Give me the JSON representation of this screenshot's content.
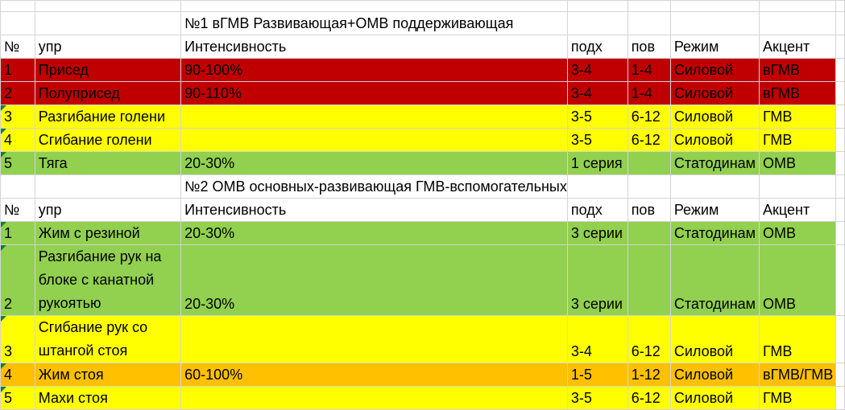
{
  "colors": {
    "red": "#c00000",
    "yellow": "#ffff00",
    "green": "#92d050",
    "orange": "#ffc000",
    "white": "#ffffff"
  },
  "block1": {
    "title": "№1 вГМВ Развивающая+ОМВ поддерживающая",
    "header": [
      "№",
      "упр",
      "Интенсивность",
      "подх",
      "пов",
      "Режим",
      "Акцент"
    ],
    "rows": [
      {
        "n": "1",
        "name": "Присед",
        "intensity": "90-100%",
        "sets": "3-4",
        "reps": "1-4",
        "mode": "Силовой",
        "accent": "вГМВ",
        "color": "red"
      },
      {
        "n": "2",
        "name": "Полуприсед",
        "intensity": "90-110%",
        "sets": "3-4",
        "reps": "1-4",
        "mode": "Силовой",
        "accent": "вГМВ",
        "color": "red"
      },
      {
        "n": "3",
        "name": "Разгибание голени",
        "intensity": "",
        "sets": "3-5",
        "reps": "6-12",
        "mode": "Силовой",
        "accent": "ГМВ",
        "color": "yellow"
      },
      {
        "n": "4",
        "name": "Сгибание голени",
        "intensity": "",
        "sets": "3-5",
        "reps": "6-12",
        "mode": "Силовой",
        "accent": "ГМВ",
        "color": "yellow"
      },
      {
        "n": "5",
        "name": "Тяга",
        "intensity": "20-30%",
        "sets": "1 серия",
        "reps": "",
        "mode": "Статодинам",
        "accent": "ОМВ",
        "color": "green"
      }
    ]
  },
  "block2": {
    "title": "№2 ОМВ основных-развивающая ГМВ-вспомогательных",
    "header": [
      "№",
      "упр",
      "Интенсивность",
      "подх",
      "пов",
      "Режим",
      "Акцент"
    ],
    "rows": [
      {
        "n": "1",
        "name": "Жим с резиной",
        "intensity": "20-30%",
        "sets": "3 серии",
        "reps": "",
        "mode": "Статодинам",
        "accent": "ОМВ",
        "color": "green"
      },
      {
        "n": "2",
        "name": "Разгибание рук на блоке с канатной рукоятью",
        "intensity": "20-30%",
        "sets": "3 серии",
        "reps": "",
        "mode": "Статодинам",
        "accent": "ОМВ",
        "color": "green"
      },
      {
        "n": "3",
        "name": "Сгибание рук со штангой стоя",
        "intensity": "",
        "sets": "3-4",
        "reps": "6-12",
        "mode": "Силовой",
        "accent": "ГМВ",
        "color": "yellow"
      },
      {
        "n": "4",
        "name": "Жим стоя",
        "intensity": "60-100%",
        "sets": "1-5",
        "reps": "1-12",
        "mode": "Силовой",
        "accent": "вГМВ/ГМВ",
        "color": "orange"
      },
      {
        "n": "5",
        "name": "Махи стоя",
        "intensity": "",
        "sets": "3-5",
        "reps": "6-12",
        "mode": "Силовой",
        "accent": "ГМВ",
        "color": "yellow"
      }
    ]
  }
}
